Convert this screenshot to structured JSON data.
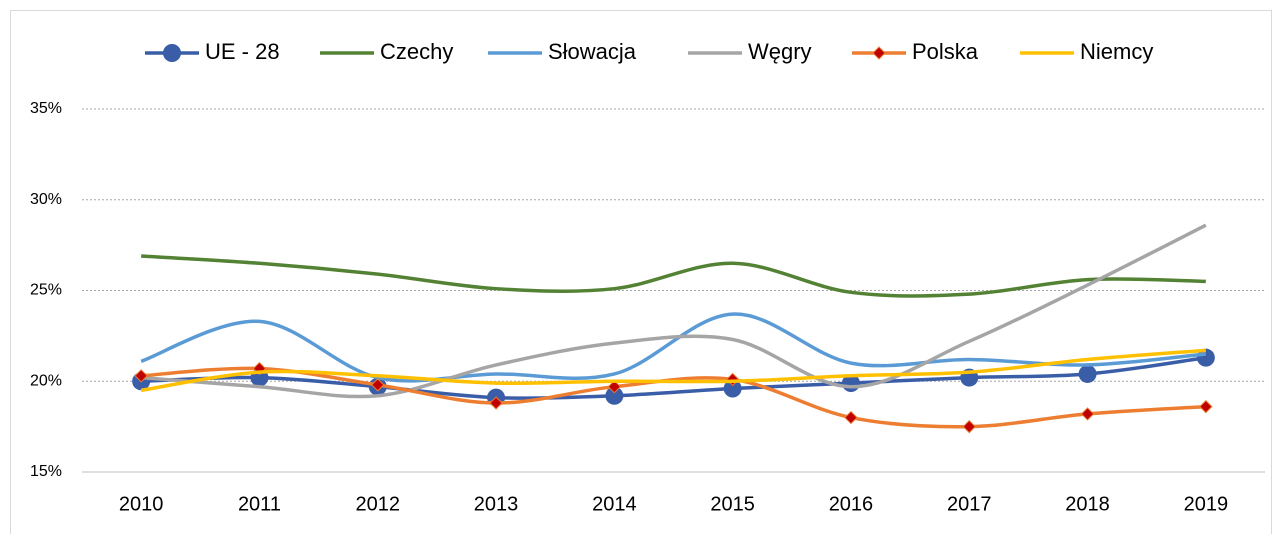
{
  "chart_data": {
    "type": "line",
    "categories": [
      "2010",
      "2011",
      "2012",
      "2013",
      "2014",
      "2015",
      "2016",
      "2017",
      "2018",
      "2019"
    ],
    "series": [
      {
        "name": "UE - 28",
        "color": "#3a5da8",
        "marker": "circle",
        "values": [
          20.0,
          20.2,
          19.7,
          19.1,
          19.2,
          19.6,
          19.9,
          20.2,
          20.4,
          21.3
        ]
      },
      {
        "name": "Czechy",
        "color": "#548235",
        "values": [
          26.9,
          26.5,
          25.9,
          25.1,
          25.1,
          26.5,
          24.9,
          24.8,
          25.6,
          25.5
        ]
      },
      {
        "name": "Słowacja",
        "color": "#5b9bd5",
        "values": [
          21.1,
          23.3,
          20.2,
          20.4,
          20.4,
          23.7,
          21.0,
          21.2,
          20.9,
          21.5
        ]
      },
      {
        "name": "Węgry",
        "color": "#a5a5a5",
        "values": [
          20.2,
          19.7,
          19.2,
          20.9,
          22.1,
          22.3,
          19.7,
          22.2,
          25.3,
          28.6
        ]
      },
      {
        "name": "Polska",
        "color": "#ed7d31",
        "marker": "diamond",
        "marker_color": "#c00000",
        "values": [
          20.3,
          20.7,
          19.8,
          18.8,
          19.7,
          20.1,
          18.0,
          17.5,
          18.2,
          18.6
        ]
      },
      {
        "name": "Niemcy",
        "color": "#ffc000",
        "values": [
          19.5,
          20.5,
          20.3,
          19.9,
          20.0,
          20.0,
          20.3,
          20.5,
          21.2,
          21.7
        ]
      }
    ],
    "ylim": [
      15,
      35
    ],
    "yticks": [
      {
        "value": 15,
        "label": "15%"
      },
      {
        "value": 20,
        "label": "20%"
      },
      {
        "value": 25,
        "label": "25%"
      },
      {
        "value": 30,
        "label": "30%"
      },
      {
        "value": 35,
        "label": "35%"
      }
    ],
    "grid": true,
    "smooth": true,
    "legend": "top"
  }
}
